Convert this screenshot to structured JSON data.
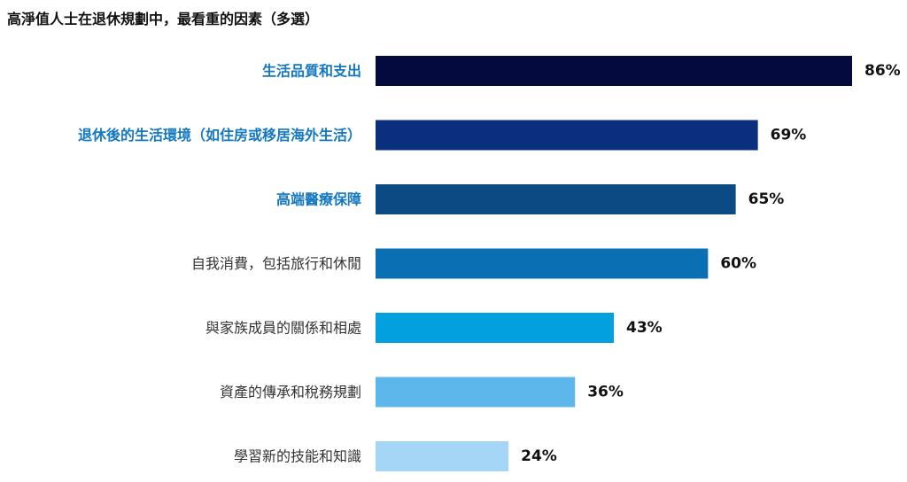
{
  "chart_data": {
    "type": "bar",
    "orientation": "horizontal",
    "title": "高淨值人士在退休規劃中，最看重的因素（多選）",
    "categories": [
      "生活品質和支出",
      "退休後的生活環境（如住房或移居海外生活）",
      "高端醫療保障",
      "自我消費，包括旅行和休閒",
      "與家族成員的關係和相處",
      "資產的傳承和稅務規劃",
      "學習新的技能和知識"
    ],
    "values": [
      86,
      69,
      65,
      60,
      43,
      36,
      24
    ],
    "value_labels": [
      "86%",
      "69%",
      "65%",
      "60%",
      "43%",
      "36%",
      "24%"
    ],
    "unit": "%",
    "xlim": [
      0,
      86
    ],
    "highlighted_categories": [
      0,
      1,
      2
    ],
    "bar_colors": [
      "#050a3e",
      "#0a2f7d",
      "#0b4a82",
      "#0a6fb3",
      "#03a0e0",
      "#5db7ea",
      "#a6d6f5"
    ],
    "label_colors": {
      "highlighted": "#1478c0",
      "normal": "#333333"
    },
    "grid": false,
    "legend": "none"
  }
}
